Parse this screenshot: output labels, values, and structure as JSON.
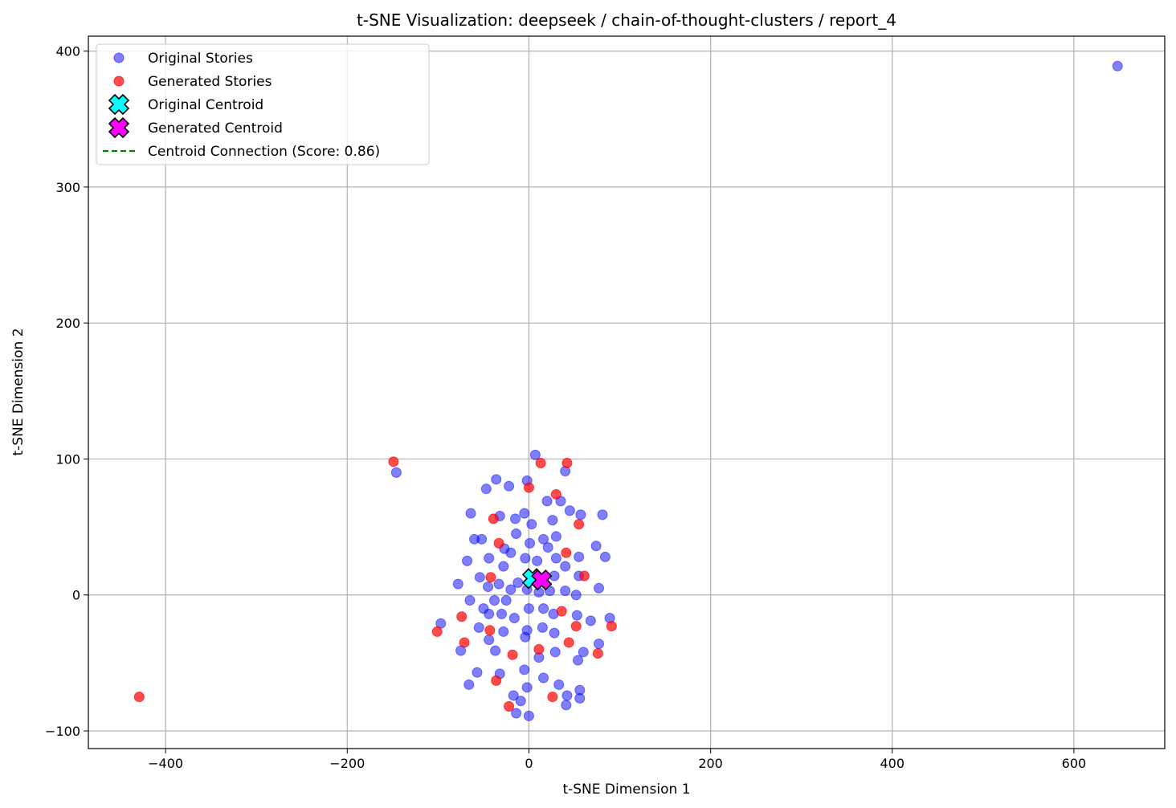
{
  "chart_data": {
    "type": "scatter",
    "title": "t-SNE Visualization: deepseek / chain-of-thought-clusters / report_4",
    "xlabel": "t-SNE Dimension 1",
    "ylabel": "t-SNE Dimension 2",
    "xlim": [
      -485,
      700
    ],
    "ylim": [
      -113,
      411
    ],
    "xticks": [
      -400,
      -200,
      0,
      200,
      400,
      600
    ],
    "yticks": [
      -100,
      0,
      100,
      200,
      300,
      400
    ],
    "xtick_labels": [
      "−400",
      "−200",
      "0",
      "200",
      "400",
      "600"
    ],
    "ytick_labels": [
      "−100",
      "0",
      "100",
      "200",
      "300",
      "400"
    ],
    "grid": true,
    "legend_position": "top-left",
    "series": [
      {
        "name": "Original Stories",
        "color": "#0000ff",
        "marker": "circle",
        "points": [
          [
            648,
            389
          ],
          [
            -146,
            90
          ],
          [
            7,
            103
          ],
          [
            -36,
            85
          ],
          [
            -47,
            78
          ],
          [
            -22,
            80
          ],
          [
            -2,
            84
          ],
          [
            40,
            91
          ],
          [
            -64,
            60
          ],
          [
            -32,
            58
          ],
          [
            -5,
            60
          ],
          [
            -15,
            56
          ],
          [
            20,
            69
          ],
          [
            35,
            69
          ],
          [
            45,
            62
          ],
          [
            57,
            59
          ],
          [
            81,
            59
          ],
          [
            -60,
            41
          ],
          [
            -52,
            41
          ],
          [
            -20,
            31
          ],
          [
            -27,
            34
          ],
          [
            -44,
            27
          ],
          [
            -68,
            25
          ],
          [
            -14,
            45
          ],
          [
            1,
            38
          ],
          [
            16,
            41
          ],
          [
            21,
            35
          ],
          [
            26,
            55
          ],
          [
            30,
            43
          ],
          [
            3,
            52
          ],
          [
            -4,
            27
          ],
          [
            9,
            25
          ],
          [
            30,
            27
          ],
          [
            40,
            21
          ],
          [
            74,
            36
          ],
          [
            84,
            28
          ],
          [
            55,
            28
          ],
          [
            -78,
            8
          ],
          [
            -54,
            13
          ],
          [
            -28,
            21
          ],
          [
            -33,
            8
          ],
          [
            -45,
            6
          ],
          [
            -20,
            4
          ],
          [
            -12,
            9
          ],
          [
            -2,
            4
          ],
          [
            11,
            2
          ],
          [
            23,
            3
          ],
          [
            28,
            14
          ],
          [
            55,
            14
          ],
          [
            40,
            3
          ],
          [
            52,
            0
          ],
          [
            77,
            5
          ],
          [
            -65,
            -4
          ],
          [
            -38,
            -4
          ],
          [
            -25,
            -4
          ],
          [
            -50,
            -10
          ],
          [
            -44,
            -14
          ],
          [
            -30,
            -14
          ],
          [
            -16,
            -17
          ],
          [
            0,
            -10
          ],
          [
            16,
            -10
          ],
          [
            27,
            -14
          ],
          [
            53,
            -15
          ],
          [
            68,
            -19
          ],
          [
            89,
            -17
          ],
          [
            -97,
            -21
          ],
          [
            -55,
            -24
          ],
          [
            -28,
            -27
          ],
          [
            -2,
            -26
          ],
          [
            15,
            -24
          ],
          [
            28,
            -28
          ],
          [
            -44,
            -33
          ],
          [
            -4,
            -31
          ],
          [
            -75,
            -41
          ],
          [
            -37,
            -41
          ],
          [
            11,
            -46
          ],
          [
            29,
            -42
          ],
          [
            60,
            -42
          ],
          [
            77,
            -36
          ],
          [
            54,
            -48
          ],
          [
            -57,
            -57
          ],
          [
            -32,
            -58
          ],
          [
            -5,
            -55
          ],
          [
            16,
            -61
          ],
          [
            -66,
            -66
          ],
          [
            -2,
            -68
          ],
          [
            -17,
            -74
          ],
          [
            33,
            -66
          ],
          [
            56,
            -70
          ],
          [
            42,
            -74
          ],
          [
            -9,
            -78
          ],
          [
            -14,
            -87
          ],
          [
            0,
            -89
          ],
          [
            41,
            -81
          ],
          [
            56,
            -76
          ]
        ]
      },
      {
        "name": "Generated Stories",
        "color": "#ff0000",
        "marker": "circle",
        "points": [
          [
            -429,
            -75
          ],
          [
            -149,
            98
          ],
          [
            13,
            97
          ],
          [
            42,
            97
          ],
          [
            0,
            79
          ],
          [
            30,
            74
          ],
          [
            -39,
            56
          ],
          [
            55,
            52
          ],
          [
            -33,
            38
          ],
          [
            41,
            31
          ],
          [
            -42,
            13
          ],
          [
            61,
            14
          ],
          [
            36,
            -12
          ],
          [
            -74,
            -16
          ],
          [
            52,
            -23
          ],
          [
            91,
            -23
          ],
          [
            -43,
            -26
          ],
          [
            -101,
            -27
          ],
          [
            -71,
            -35
          ],
          [
            44,
            -35
          ],
          [
            11,
            -40
          ],
          [
            -18,
            -44
          ],
          [
            76,
            -43
          ],
          [
            -36,
            -63
          ],
          [
            26,
            -75
          ],
          [
            -22,
            -82
          ]
        ]
      }
    ],
    "centroids": [
      {
        "name": "Original Centroid",
        "x": 4,
        "y": 12,
        "color": "#00ffff"
      },
      {
        "name": "Generated Centroid",
        "x": 14,
        "y": 11,
        "color": "#ff00ff"
      }
    ],
    "centroid_connection": {
      "label": "Centroid Connection (Score: 0.86)",
      "color": "#008000",
      "style": "dashed"
    }
  }
}
